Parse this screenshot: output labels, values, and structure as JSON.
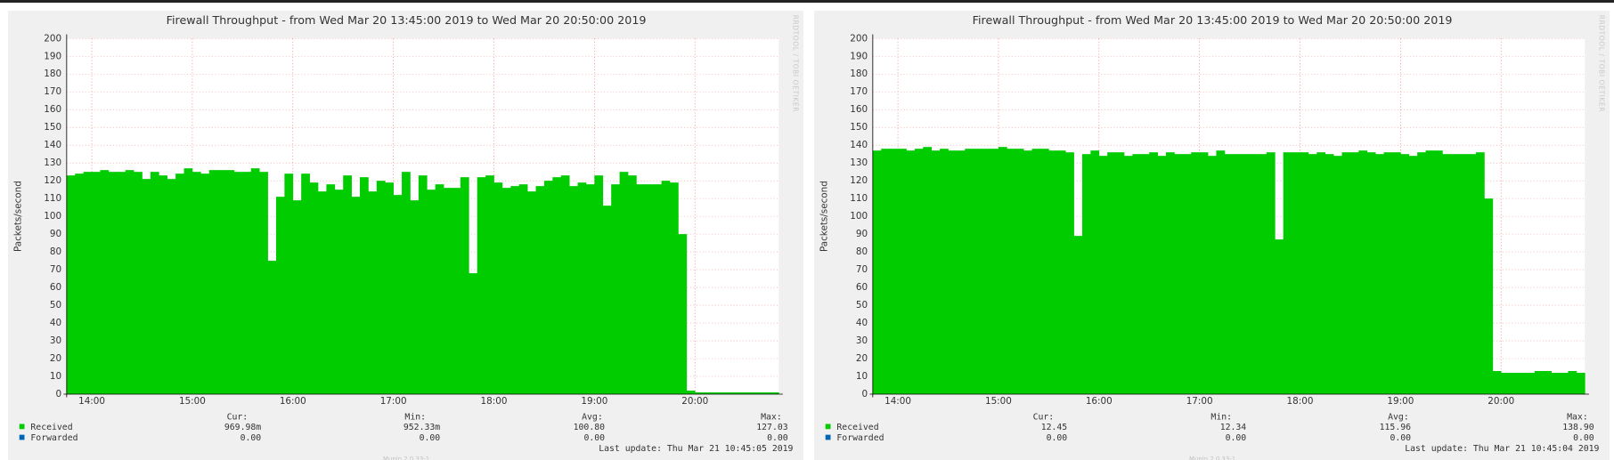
{
  "chart_data": [
    {
      "type": "area",
      "title": "Firewall Throughput - from Wed Mar 20 13:45:00 2019 to Wed Mar 20 20:50:00 2019",
      "y_label": "Packets/second",
      "watermark": "RRDTOOL / TOBI OETIKER",
      "footer": "Munin 2.0.33-1",
      "last_update": "Last update: Thu Mar 21 10:45:05 2019",
      "xlim": [
        825,
        1250
      ],
      "xticks": [
        {
          "value": 840,
          "label": "14:00"
        },
        {
          "value": 900,
          "label": "15:00"
        },
        {
          "value": 960,
          "label": "16:00"
        },
        {
          "value": 1020,
          "label": "17:00"
        },
        {
          "value": 1080,
          "label": "18:00"
        },
        {
          "value": 1140,
          "label": "19:00"
        },
        {
          "value": 1200,
          "label": "20:00"
        }
      ],
      "ylim": [
        0,
        200
      ],
      "yticks": [
        0,
        10,
        20,
        30,
        40,
        50,
        60,
        70,
        80,
        90,
        100,
        110,
        120,
        130,
        140,
        150,
        160,
        170,
        180,
        190,
        200
      ],
      "grid": true,
      "stat_headers": [
        "Cur:",
        "Min:",
        "Avg:",
        "Max:"
      ],
      "x": [
        825,
        830,
        835,
        840,
        845,
        850,
        855,
        860,
        865,
        870,
        875,
        880,
        885,
        890,
        895,
        900,
        905,
        910,
        915,
        920,
        925,
        930,
        935,
        940,
        945,
        950,
        955,
        960,
        965,
        970,
        975,
        980,
        985,
        990,
        995,
        1000,
        1005,
        1010,
        1015,
        1020,
        1025,
        1030,
        1035,
        1040,
        1045,
        1050,
        1055,
        1060,
        1065,
        1070,
        1075,
        1080,
        1085,
        1090,
        1095,
        1100,
        1105,
        1110,
        1115,
        1120,
        1125,
        1130,
        1135,
        1140,
        1145,
        1150,
        1155,
        1160,
        1165,
        1170,
        1175,
        1180,
        1185,
        1190,
        1195,
        1200,
        1205,
        1210,
        1215,
        1220,
        1225,
        1230,
        1235,
        1240,
        1245
      ],
      "series": [
        {
          "name": "Received",
          "color": "#00cc00",
          "stats": [
            "969.98m",
            "952.33m",
            "100.80",
            "127.03"
          ],
          "values": [
            123,
            124,
            125,
            125,
            126,
            125,
            125,
            126,
            125,
            121,
            125,
            123,
            121,
            124,
            127,
            125,
            124,
            126,
            126,
            126,
            125,
            125,
            127,
            125,
            75,
            111,
            124,
            109,
            124,
            119,
            114,
            118,
            115,
            123,
            111,
            122,
            114,
            120,
            119,
            112,
            125,
            109,
            123,
            115,
            118,
            116,
            116,
            122,
            68,
            122,
            123,
            119,
            116,
            117,
            118,
            114,
            117,
            120,
            122,
            123,
            117,
            119,
            118,
            123,
            106,
            118,
            125,
            123,
            118,
            118,
            118,
            120,
            119,
            90,
            2,
            1,
            1,
            1,
            1,
            1,
            1,
            1,
            1,
            1,
            1
          ]
        },
        {
          "name": "Forwarded",
          "color": "#0066b3",
          "stats": [
            "0.00",
            "0.00",
            "0.00",
            "0.00"
          ]
        }
      ]
    },
    {
      "type": "area",
      "title": "Firewall Throughput - from Wed Mar 20 13:45:00 2019 to Wed Mar 20 20:50:00 2019",
      "y_label": "Packets/second",
      "watermark": "RRDTOOL / TOBI OETIKER",
      "footer": "Munin 2.0.33-1",
      "last_update": "Last update: Thu Mar 21 10:45:04 2019",
      "xlim": [
        825,
        1250
      ],
      "xticks": [
        {
          "value": 840,
          "label": "14:00"
        },
        {
          "value": 900,
          "label": "15:00"
        },
        {
          "value": 960,
          "label": "16:00"
        },
        {
          "value": 1020,
          "label": "17:00"
        },
        {
          "value": 1080,
          "label": "18:00"
        },
        {
          "value": 1140,
          "label": "19:00"
        },
        {
          "value": 1200,
          "label": "20:00"
        }
      ],
      "ylim": [
        0,
        200
      ],
      "yticks": [
        0,
        10,
        20,
        30,
        40,
        50,
        60,
        70,
        80,
        90,
        100,
        110,
        120,
        130,
        140,
        150,
        160,
        170,
        180,
        190,
        200
      ],
      "grid": true,
      "stat_headers": [
        "Cur:",
        "Min:",
        "Avg:",
        "Max:"
      ],
      "x": [
        825,
        830,
        835,
        840,
        845,
        850,
        855,
        860,
        865,
        870,
        875,
        880,
        885,
        890,
        895,
        900,
        905,
        910,
        915,
        920,
        925,
        930,
        935,
        940,
        945,
        950,
        955,
        960,
        965,
        970,
        975,
        980,
        985,
        990,
        995,
        1000,
        1005,
        1010,
        1015,
        1020,
        1025,
        1030,
        1035,
        1040,
        1045,
        1050,
        1055,
        1060,
        1065,
        1070,
        1075,
        1080,
        1085,
        1090,
        1095,
        1100,
        1105,
        1110,
        1115,
        1120,
        1125,
        1130,
        1135,
        1140,
        1145,
        1150,
        1155,
        1160,
        1165,
        1170,
        1175,
        1180,
        1185,
        1190,
        1195,
        1200,
        1205,
        1210,
        1215,
        1220,
        1225,
        1230,
        1235,
        1240,
        1245
      ],
      "series": [
        {
          "name": "Received",
          "color": "#00cc00",
          "stats": [
            "12.45",
            "12.34",
            "115.96",
            "138.90"
          ],
          "values": [
            137,
            138,
            138,
            138,
            137,
            138,
            139,
            137,
            138,
            137,
            137,
            138,
            138,
            138,
            138,
            139,
            138,
            138,
            137,
            138,
            138,
            137,
            137,
            136,
            89,
            135,
            137,
            134,
            136,
            136,
            134,
            135,
            135,
            136,
            134,
            136,
            135,
            135,
            136,
            136,
            134,
            137,
            135,
            135,
            135,
            135,
            135,
            136,
            87,
            136,
            136,
            136,
            135,
            136,
            135,
            134,
            136,
            136,
            137,
            136,
            135,
            136,
            136,
            135,
            134,
            136,
            137,
            137,
            135,
            135,
            135,
            135,
            136,
            110,
            13,
            12,
            12,
            12,
            12,
            13,
            13,
            12,
            12,
            13,
            12
          ]
        },
        {
          "name": "Forwarded",
          "color": "#0066b3",
          "stats": [
            "0.00",
            "0.00",
            "0.00",
            "0.00"
          ]
        }
      ]
    }
  ]
}
